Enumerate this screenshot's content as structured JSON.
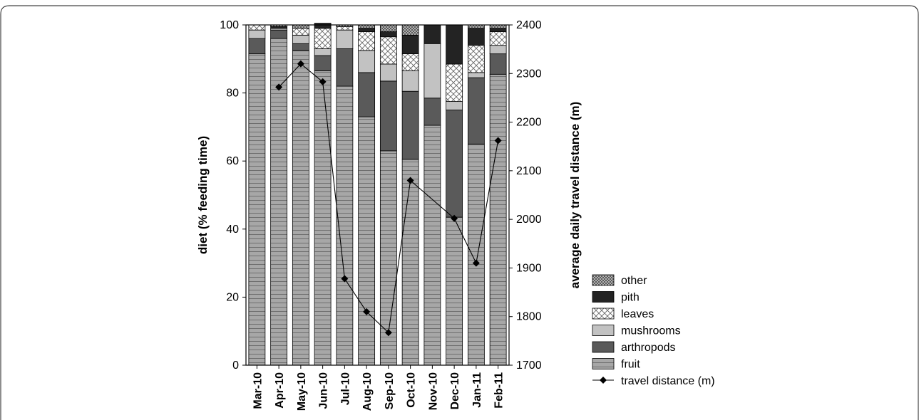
{
  "chart_data": {
    "type": "bar",
    "stacked": true,
    "categories": [
      "Mar-10",
      "Apr-10",
      "May-10",
      "Jun-10",
      "Jul-10",
      "Aug-10",
      "Sep-10",
      "Oct-10",
      "Nov-10",
      "Dec-10",
      "Jan-11",
      "Feb-11"
    ],
    "ylabel": "diet (% feeding time)",
    "y2label": "average daily travel distance (m)",
    "ylim": [
      0,
      100
    ],
    "y2lim": [
      1700,
      2400
    ],
    "yticks": [
      "0",
      "20",
      "40",
      "60",
      "80",
      "100"
    ],
    "y2ticks": [
      "1700",
      "1800",
      "1900",
      "2000",
      "2100",
      "2200",
      "2300",
      "2400"
    ],
    "series": [
      {
        "name": "fruit",
        "values": [
          91.5,
          96,
          92.5,
          86.5,
          82,
          73,
          63,
          60.5,
          70.5,
          43.5,
          65,
          85.5
        ]
      },
      {
        "name": "arthropods",
        "values": [
          4.5,
          2.5,
          2,
          4.5,
          11,
          13,
          20.5,
          20,
          8,
          31.5,
          19.5,
          6
        ]
      },
      {
        "name": "mushrooms",
        "values": [
          2.5,
          0.5,
          2.5,
          2,
          5.5,
          6.5,
          5,
          6,
          16,
          2.5,
          1.5,
          2.5
        ]
      },
      {
        "name": "leaves",
        "values": [
          1.5,
          0,
          2,
          6,
          1,
          5.5,
          8,
          5,
          0,
          11,
          8,
          4
        ]
      },
      {
        "name": "pith",
        "values": [
          0,
          0.5,
          0,
          1.5,
          0,
          1,
          1.5,
          5.5,
          5.5,
          11.5,
          5,
          1
        ]
      },
      {
        "name": "other",
        "values": [
          0,
          0.5,
          1,
          0,
          0.5,
          1,
          2,
          3,
          0,
          0,
          1,
          1
        ]
      }
    ],
    "line_series": {
      "name": "travel distance (m)",
      "x": [
        "Apr-10",
        "May-10",
        "Jun-10",
        "Jul-10",
        "Aug-10",
        "Sep-10",
        "Oct-10",
        "Dec-10",
        "Jan-11",
        "Feb-11"
      ],
      "values": [
        2272,
        2320,
        2283,
        1878,
        1810,
        1767,
        2080,
        2002,
        1910,
        2162
      ]
    },
    "legend": {
      "position": "right",
      "entries": [
        "other",
        "pith",
        "leaves",
        "mushrooms",
        "arthropods",
        "fruit",
        "travel distance (m)"
      ]
    },
    "colors": {
      "fruit": "#a3a3a3",
      "arthropods": "#595959",
      "mushrooms": "#c0c0c0",
      "leaves": "#ffffff",
      "pith": "#222222",
      "other": "#8a8a8a",
      "line": "#000000"
    },
    "grid": false
  }
}
